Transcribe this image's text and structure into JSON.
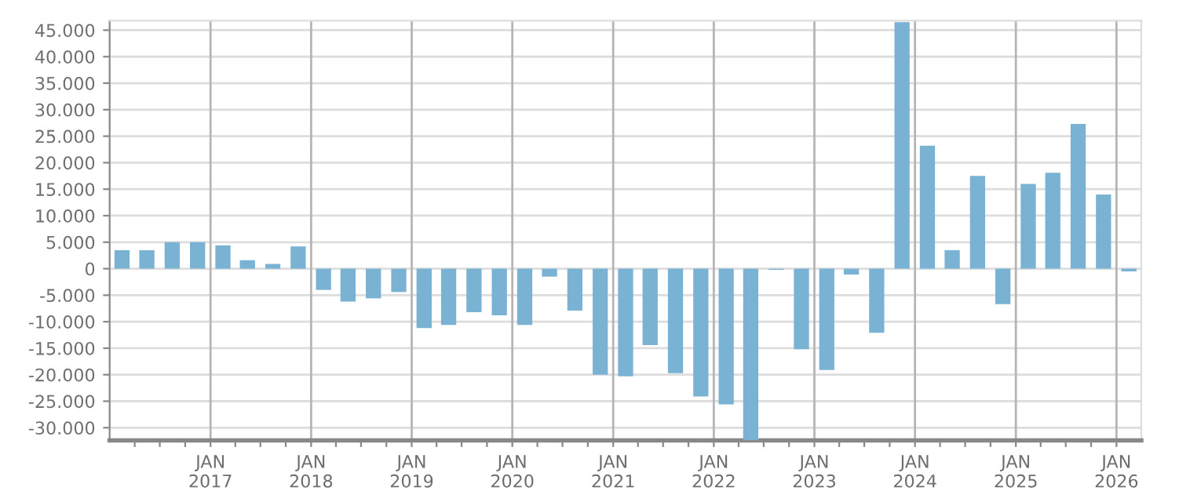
{
  "chart_data": {
    "type": "bar",
    "color": "#7ab2d4",
    "grid": true,
    "x": [
      "2016-02-15",
      "2016-05-15",
      "2016-08-15",
      "2016-11-15",
      "2017-02-15",
      "2017-05-15",
      "2017-08-15",
      "2017-11-15",
      "2018-02-15",
      "2018-05-15",
      "2018-08-15",
      "2018-11-15",
      "2019-02-15",
      "2019-05-15",
      "2019-08-15",
      "2019-11-15",
      "2020-02-15",
      "2020-05-15",
      "2020-08-15",
      "2020-11-15",
      "2021-02-15",
      "2021-05-15",
      "2021-08-15",
      "2021-11-15",
      "2022-02-15",
      "2022-05-15",
      "2022-08-15",
      "2022-11-15",
      "2023-02-15",
      "2023-05-15",
      "2023-08-15",
      "2023-11-15",
      "2024-02-15",
      "2024-05-15",
      "2024-08-15",
      "2024-11-15",
      "2025-02-15",
      "2025-05-15",
      "2025-08-15",
      "2025-11-15",
      "2026-02-15"
    ],
    "values": [
      3500,
      3500,
      5000,
      5000,
      4400,
      1600,
      900,
      4200,
      -4000,
      -6200,
      -5600,
      -4400,
      -11200,
      -10600,
      -8200,
      -8800,
      -10600,
      -1500,
      -7900,
      -20000,
      -20300,
      -14400,
      -19700,
      -24100,
      -25600,
      -32400,
      -200,
      -15200,
      -19100,
      -1100,
      -12100,
      46500,
      23200,
      3500,
      17500,
      -6700,
      16000,
      18100,
      27300,
      14000,
      -500
    ],
    "xlim": [
      "2016-01-01",
      "2026-04-01"
    ],
    "xticks": [
      {
        "value": "2016-04-01",
        "label": null
      },
      {
        "value": "2016-07-01",
        "label": null
      },
      {
        "value": "2016-10-01",
        "label": null
      },
      {
        "value": "2017-01-01",
        "label": "JAN\n2017"
      },
      {
        "value": "2017-04-01",
        "label": null
      },
      {
        "value": "2017-07-01",
        "label": null
      },
      {
        "value": "2017-10-01",
        "label": null
      },
      {
        "value": "2018-01-01",
        "label": "JAN\n2018"
      },
      {
        "value": "2018-04-01",
        "label": null
      },
      {
        "value": "2018-07-01",
        "label": null
      },
      {
        "value": "2018-10-01",
        "label": null
      },
      {
        "value": "2019-01-01",
        "label": "JAN\n2019"
      },
      {
        "value": "2019-04-01",
        "label": null
      },
      {
        "value": "2019-07-01",
        "label": null
      },
      {
        "value": "2019-10-01",
        "label": null
      },
      {
        "value": "2020-01-01",
        "label": "JAN\n2020"
      },
      {
        "value": "2020-04-01",
        "label": null
      },
      {
        "value": "2020-07-01",
        "label": null
      },
      {
        "value": "2020-10-01",
        "label": null
      },
      {
        "value": "2021-01-01",
        "label": "JAN\n2021"
      },
      {
        "value": "2021-04-01",
        "label": null
      },
      {
        "value": "2021-07-01",
        "label": null
      },
      {
        "value": "2021-10-01",
        "label": null
      },
      {
        "value": "2022-01-01",
        "label": "JAN\n2022"
      },
      {
        "value": "2022-04-01",
        "label": null
      },
      {
        "value": "2022-07-01",
        "label": null
      },
      {
        "value": "2022-10-01",
        "label": null
      },
      {
        "value": "2023-01-01",
        "label": "JAN\n2023"
      },
      {
        "value": "2023-04-01",
        "label": null
      },
      {
        "value": "2023-07-01",
        "label": null
      },
      {
        "value": "2023-10-01",
        "label": null
      },
      {
        "value": "2024-01-01",
        "label": "JAN\n2024"
      },
      {
        "value": "2024-04-01",
        "label": null
      },
      {
        "value": "2024-07-01",
        "label": null
      },
      {
        "value": "2024-10-01",
        "label": null
      },
      {
        "value": "2025-01-01",
        "label": "JAN\n2025"
      },
      {
        "value": "2025-04-01",
        "label": null
      },
      {
        "value": "2025-07-01",
        "label": null
      },
      {
        "value": "2025-10-01",
        "label": null
      },
      {
        "value": "2026-01-01",
        "label": "JAN\n2026"
      }
    ],
    "ylim": [
      -32400,
      46800
    ],
    "yticks": [
      {
        "value": -30000,
        "label": "-30.000"
      },
      {
        "value": -25000,
        "label": "-25.000"
      },
      {
        "value": -20000,
        "label": "-20.000"
      },
      {
        "value": -15000,
        "label": "-15.000"
      },
      {
        "value": -10000,
        "label": "-10.000"
      },
      {
        "value": -5000,
        "label": "-5.000"
      },
      {
        "value": 0,
        "label": "0"
      },
      {
        "value": 5000,
        "label": "5.000"
      },
      {
        "value": 10000,
        "label": "10.000"
      },
      {
        "value": 15000,
        "label": "15.000"
      },
      {
        "value": 20000,
        "label": "20.000"
      },
      {
        "value": 25000,
        "label": "25.000"
      },
      {
        "value": 30000,
        "label": "30.000"
      },
      {
        "value": 35000,
        "label": "35.000"
      },
      {
        "value": 40000,
        "label": "40.000"
      },
      {
        "value": 45000,
        "label": "45.000"
      }
    ]
  }
}
